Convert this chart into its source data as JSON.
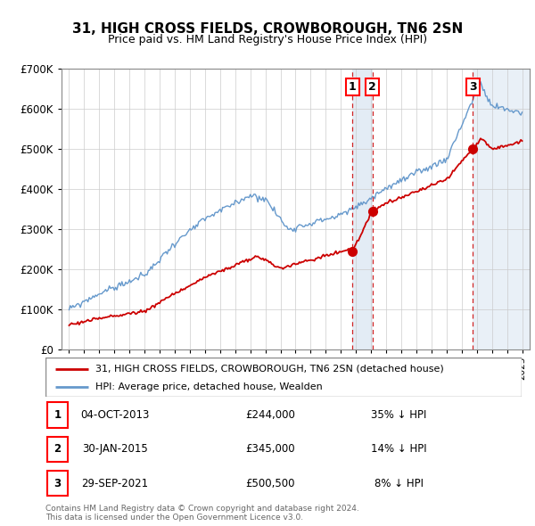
{
  "title": "31, HIGH CROSS FIELDS, CROWBOROUGH, TN6 2SN",
  "subtitle": "Price paid vs. HM Land Registry's House Price Index (HPI)",
  "legend_line1": "31, HIGH CROSS FIELDS, CROWBOROUGH, TN6 2SN (detached house)",
  "legend_line2": "HPI: Average price, detached house, Wealden",
  "transactions": [
    {
      "num": 1,
      "date": "04-OCT-2013",
      "price": 244000,
      "hpi_diff": "35% ↓ HPI",
      "x_year": 2013.75
    },
    {
      "num": 2,
      "date": "30-JAN-2015",
      "price": 345000,
      "hpi_diff": "14% ↓ HPI",
      "x_year": 2015.08
    },
    {
      "num": 3,
      "date": "29-SEP-2021",
      "price": 500500,
      "hpi_diff": "8% ↓ HPI",
      "x_year": 2021.75
    }
  ],
  "footer_line1": "Contains HM Land Registry data © Crown copyright and database right 2024.",
  "footer_line2": "This data is licensed under the Open Government Licence v3.0.",
  "hpi_color": "#6699cc",
  "price_color": "#cc0000",
  "marker_color": "#cc0000",
  "dashed_color": "#cc0000",
  "shade_color": "#ddeeff",
  "ylim": [
    0,
    700000
  ],
  "xlim_start": 1994.5,
  "xlim_end": 2025.5
}
